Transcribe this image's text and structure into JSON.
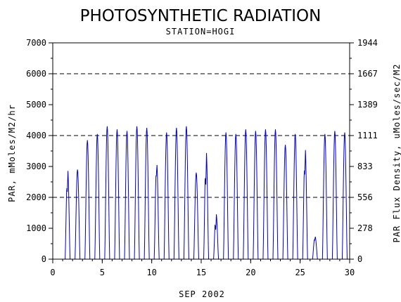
{
  "chart_data": {
    "type": "line",
    "title": "PHOTOSYNTHETIC RADIATION",
    "subtitle": "STATION=HOGI",
    "xlabel": "SEP 2002",
    "ylabel": "PAR, mMoles/M2/hr",
    "ylabel_right": "PAR Flux Density, uMoles/sec/M2",
    "xlim": [
      0,
      30
    ],
    "ylim": [
      0,
      7000
    ],
    "x_ticks": [
      "0",
      "5",
      "10",
      "15",
      "20",
      "25",
      "30"
    ],
    "y_ticks": [
      "0",
      "1000",
      "2000",
      "3000",
      "4000",
      "5000",
      "6000",
      "7000"
    ],
    "y_ticks_right": [
      "0",
      "278",
      "556",
      "833",
      "1111",
      "1389",
      "1667",
      "1944"
    ],
    "gridlines_y": [
      2000,
      4000,
      6000
    ],
    "line_color": "#0000cc",
    "series": [
      {
        "values": [
          {
            "day": 1,
            "peak": 2950,
            "dip": 2100
          },
          {
            "day": 2,
            "peak": 2900
          },
          {
            "day": 3,
            "peak": 3850
          },
          {
            "day": 4,
            "peak": 4050
          },
          {
            "day": 5,
            "peak": 4300
          },
          {
            "day": 6,
            "peak": 4200
          },
          {
            "day": 7,
            "peak": 4150
          },
          {
            "day": 8,
            "peak": 4300
          },
          {
            "day": 9,
            "peak": 4250
          },
          {
            "day": 10,
            "peak": 3150,
            "dip": 2650
          },
          {
            "day": 11,
            "peak": 4100
          },
          {
            "day": 12,
            "peak": 4250
          },
          {
            "day": 13,
            "peak": 4300
          },
          {
            "day": 14,
            "peak": 2800
          },
          {
            "day": 15,
            "peak": 3550,
            "dip": 2300
          },
          {
            "day": 16,
            "peak": 1500,
            "dip": 900
          },
          {
            "day": 17,
            "peak": 4100
          },
          {
            "day": 18,
            "peak": 4050
          },
          {
            "day": 19,
            "peak": 4200
          },
          {
            "day": 20,
            "peak": 4150
          },
          {
            "day": 21,
            "peak": 4200
          },
          {
            "day": 22,
            "peak": 4200
          },
          {
            "day": 23,
            "peak": 3700
          },
          {
            "day": 24,
            "peak": 4050
          },
          {
            "day": 25,
            "peak": 3650,
            "dip": 2650
          },
          {
            "day": 26,
            "peak": 750,
            "dip": 600
          },
          {
            "day": 27,
            "peak": 4050
          },
          {
            "day": 28,
            "peak": 4150
          },
          {
            "day": 29,
            "peak": 4100
          }
        ]
      }
    ]
  }
}
